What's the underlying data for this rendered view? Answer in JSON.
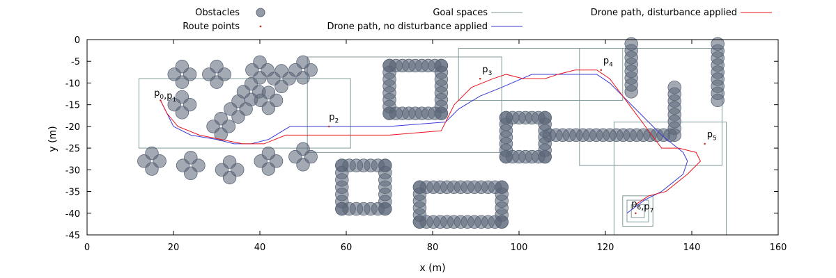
{
  "chart_data": {
    "type": "scatter",
    "title": "",
    "xlabel": "x (m)",
    "ylabel": "y (m)",
    "xlim": [
      0,
      160
    ],
    "ylim": [
      -45,
      0
    ],
    "xticks": [
      0,
      20,
      40,
      60,
      80,
      100,
      120,
      140,
      160
    ],
    "yticks": [
      0,
      -5,
      -10,
      -15,
      -20,
      -25,
      -30,
      -35,
      -40,
      -45
    ],
    "grid": false,
    "legend": {
      "placement": "top",
      "entries": [
        {
          "label": "Obstacles",
          "symbol": "circle",
          "color": "#5a6577"
        },
        {
          "label": "Route points",
          "symbol": "dot",
          "color": "#c0392b"
        },
        {
          "label": "Goal spaces",
          "symbol": "line",
          "color": "#7f9a9a"
        },
        {
          "label": "Drone path, no disturbance applied",
          "symbol": "line",
          "color": "#3b3bd6"
        },
        {
          "label": "Drone path, disturbance applied",
          "symbol": "line",
          "color": "#e8141c"
        }
      ]
    },
    "obstacles": {
      "color": "#5a6577",
      "radius": 1.5,
      "clusters": [
        {
          "x": 22,
          "y": -8
        },
        {
          "x": 30,
          "y": -8
        },
        {
          "x": 22,
          "y": -15
        },
        {
          "x": 40,
          "y": -7
        },
        {
          "x": 45,
          "y": -9
        },
        {
          "x": 50,
          "y": -7
        },
        {
          "x": 38,
          "y": -12
        },
        {
          "x": 35,
          "y": -16
        },
        {
          "x": 42,
          "y": -14
        },
        {
          "x": 31,
          "y": -20
        },
        {
          "x": 15,
          "y": -28
        },
        {
          "x": 24,
          "y": -29
        },
        {
          "x": 33,
          "y": -30
        },
        {
          "x": 42,
          "y": -28
        },
        {
          "x": 50,
          "y": -27
        }
      ],
      "walls": [
        {
          "from": [
            70,
            -6
          ],
          "to": [
            82,
            -6
          ]
        },
        {
          "from": [
            70,
            -17
          ],
          "to": [
            82,
            -17
          ]
        },
        {
          "from": [
            70,
            -6
          ],
          "to": [
            70,
            -17
          ]
        },
        {
          "from": [
            82,
            -6
          ],
          "to": [
            82,
            -17
          ]
        },
        {
          "from": [
            59,
            -29
          ],
          "to": [
            69,
            -29
          ]
        },
        {
          "from": [
            59,
            -39
          ],
          "to": [
            69,
            -39
          ]
        },
        {
          "from": [
            59,
            -29
          ],
          "to": [
            59,
            -39
          ]
        },
        {
          "from": [
            69,
            -29
          ],
          "to": [
            69,
            -39
          ]
        },
        {
          "from": [
            77,
            -34
          ],
          "to": [
            96,
            -34
          ]
        },
        {
          "from": [
            77,
            -42
          ],
          "to": [
            96,
            -42
          ]
        },
        {
          "from": [
            77,
            -34
          ],
          "to": [
            77,
            -42
          ]
        },
        {
          "from": [
            96,
            -34
          ],
          "to": [
            96,
            -42
          ]
        },
        {
          "from": [
            97,
            -18
          ],
          "to": [
            106,
            -18
          ]
        },
        {
          "from": [
            97,
            -27
          ],
          "to": [
            106,
            -27
          ]
        },
        {
          "from": [
            97,
            -18
          ],
          "to": [
            97,
            -27
          ]
        },
        {
          "from": [
            106,
            -18
          ],
          "to": [
            106,
            -27
          ]
        },
        {
          "from": [
            107,
            -22
          ],
          "to": [
            135,
            -22
          ]
        },
        {
          "from": [
            126,
            -1
          ],
          "to": [
            126,
            -12
          ]
        },
        {
          "from": [
            136,
            -11
          ],
          "to": [
            136,
            -22
          ]
        },
        {
          "from": [
            146,
            -1
          ],
          "to": [
            146,
            -14
          ]
        }
      ]
    },
    "route_points": [
      {
        "label": "p0,p1",
        "sub": [
          "0",
          "1"
        ],
        "x": 17,
        "y": -14,
        "lx": 15.5,
        "ly": -13
      },
      {
        "label": "p2",
        "sub": [
          "2"
        ],
        "x": 56,
        "y": -20,
        "lx": 56,
        "ly": -18.5
      },
      {
        "label": "p3",
        "sub": [
          "3"
        ],
        "x": 91,
        "y": -9,
        "lx": 91.5,
        "ly": -7.5
      },
      {
        "label": "p4",
        "sub": [
          "4"
        ],
        "x": 119,
        "y": -7,
        "lx": 119.5,
        "ly": -5.5
      },
      {
        "label": "p5",
        "sub": [
          "5"
        ],
        "x": 143,
        "y": -24,
        "lx": 143.5,
        "ly": -22.5
      },
      {
        "label": "p6,p7",
        "sub": [
          "6",
          "7"
        ],
        "x": 127,
        "y": -40,
        "lx": 126,
        "ly": -38.5
      }
    ],
    "goal_spaces": [
      {
        "x0": 12,
        "x1": 61,
        "y0": -25,
        "y1": -9
      },
      {
        "x0": 51,
        "x1": 96,
        "y0": -26,
        "y1": -4
      },
      {
        "x0": 86,
        "x1": 124,
        "y0": -14,
        "y1": -2
      },
      {
        "x0": 114,
        "x1": 147,
        "y0": -29,
        "y1": -2
      },
      {
        "x0": 122,
        "x1": 148,
        "y0": -45,
        "y1": -19
      },
      {
        "x0": 124,
        "x1": 131,
        "y0": -43,
        "y1": -36
      },
      {
        "x0": 125,
        "x1": 130,
        "y0": -42,
        "y1": -37
      },
      {
        "x0": 126,
        "x1": 129,
        "y0": -41,
        "y1": -38
      }
    ],
    "series": [
      {
        "name": "Drone path, no disturbance applied",
        "color": "#3b3bd6",
        "x": [
          17,
          18.5,
          20,
          24,
          30,
          34,
          38,
          42,
          47,
          56,
          70,
          83,
          86,
          91,
          96,
          103,
          108,
          113,
          116,
          118,
          121,
          124,
          128,
          133,
          138,
          139,
          138,
          133,
          129,
          125
        ],
        "y": [
          -14,
          -17,
          -20,
          -22,
          -23,
          -24,
          -24,
          -23,
          -20,
          -20,
          -20,
          -19,
          -16,
          -13,
          -11,
          -8,
          -8,
          -8,
          -8,
          -8,
          -10,
          -13,
          -17,
          -22,
          -26,
          -28,
          -31,
          -35,
          -37,
          -40
        ]
      },
      {
        "name": "Drone path, disturbance applied",
        "color": "#e8141c",
        "x": [
          17,
          18.5,
          21,
          26,
          31,
          36,
          41,
          46,
          56,
          70,
          82,
          84,
          85,
          89,
          94,
          97,
          101,
          106,
          109,
          113,
          116,
          118,
          121,
          124,
          127,
          130,
          133,
          137,
          141,
          142,
          139,
          134,
          130,
          127
        ],
        "y": [
          -14,
          -17,
          -20,
          -22,
          -23,
          -24,
          -24,
          -22,
          -22,
          -22,
          -21,
          -17,
          -15,
          -11,
          -9,
          -8,
          -9,
          -9,
          -8,
          -7,
          -7,
          -7,
          -9,
          -13,
          -17,
          -21,
          -25,
          -25,
          -26,
          -28,
          -31,
          -35,
          -36,
          -38
        ]
      }
    ]
  }
}
